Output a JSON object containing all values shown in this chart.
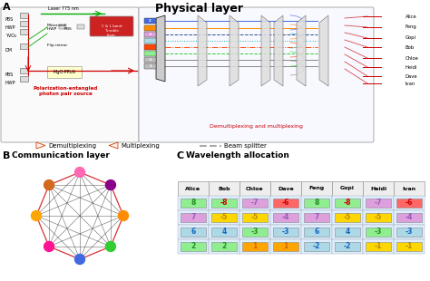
{
  "title": "Physical layer",
  "bg_color": "#ffffff",
  "section_a": "A",
  "section_b": "B",
  "section_c": "C",
  "comm_layer_title": "Communication layer",
  "wavelength_title": "Wavelength allocation",
  "users": [
    "Alice",
    "Bob",
    "Chloe",
    "Dave",
    "Feng",
    "Gopi",
    "Heidi",
    "Ivan"
  ],
  "users_right": [
    "Alice",
    "Feng",
    "Gopi",
    "Bob",
    "Chloe",
    "Heidi",
    "Dave",
    "Ivan"
  ],
  "table_data": [
    [
      "8",
      "-8",
      "-7",
      "-6",
      "8",
      "-8",
      "-7",
      "-6"
    ],
    [
      "7",
      "-5",
      "-5",
      "-4",
      "7",
      "-5",
      "-5",
      "-4"
    ],
    [
      "6",
      "4",
      "-3",
      "-3",
      "6",
      "4",
      "-3",
      "-3"
    ],
    [
      "2",
      "2",
      "1",
      "1",
      "-2",
      "-2",
      "-1",
      "-1"
    ]
  ],
  "cell_bg_colors": [
    [
      "#90EE90",
      "#90EE90",
      "#DDA0DD",
      "#FF6666",
      "#90EE90",
      "#90EE90",
      "#DDA0DD",
      "#FF6666"
    ],
    [
      "#DDA0DD",
      "#FFD700",
      "#FFD700",
      "#DDA0DD",
      "#DDA0DD",
      "#FFD700",
      "#FFD700",
      "#DDA0DD"
    ],
    [
      "#ADD8E6",
      "#ADD8E6",
      "#90EE90",
      "#ADD8E6",
      "#ADD8E6",
      "#ADD8E6",
      "#90EE90",
      "#ADD8E6"
    ],
    [
      "#90EE90",
      "#90EE90",
      "#FFA500",
      "#FFA500",
      "#ADD8E6",
      "#ADD8E6",
      "#FFD700",
      "#FFD700"
    ]
  ],
  "cell_text_colors": [
    [
      "#228B22",
      "#CC0000",
      "#9B59B6",
      "#CC0000",
      "#228B22",
      "#CC0000",
      "#9B59B6",
      "#CC0000"
    ],
    [
      "#9B59B6",
      "#B8860B",
      "#B8860B",
      "#9B59B6",
      "#9B59B6",
      "#B8860B",
      "#B8860B",
      "#9B59B6"
    ],
    [
      "#1565C0",
      "#1565C0",
      "#228B22",
      "#1565C0",
      "#1565C0",
      "#1565C0",
      "#228B22",
      "#1565C0"
    ],
    [
      "#228B22",
      "#228B22",
      "#cc6600",
      "#cc6600",
      "#1565C0",
      "#1565C0",
      "#B8860B",
      "#B8860B"
    ]
  ],
  "legend_demux": "Demultiplexing",
  "legend_mux": "Multiplexing",
  "legend_bs": "Beam splitter",
  "phys_right_box_color": "#f8f8ff",
  "channel_colors": [
    "#4169E1",
    "#FF8C00",
    "#2F4F8F",
    "#20B2AA",
    "#FF4500",
    "#32CD32",
    "#888888",
    "#888888"
  ],
  "channel_styles": [
    "-",
    "-",
    "--",
    ":",
    "-.",
    "--",
    "-",
    "-"
  ],
  "channel_y": [
    287,
    279,
    272,
    265,
    258,
    251,
    244,
    237
  ],
  "node_colors": [
    "#FF69B4",
    "#D2691E",
    "#FFA500",
    "#FF1493",
    "#4169E1",
    "#32CD32",
    "#FF8C00",
    "#8B008B"
  ]
}
